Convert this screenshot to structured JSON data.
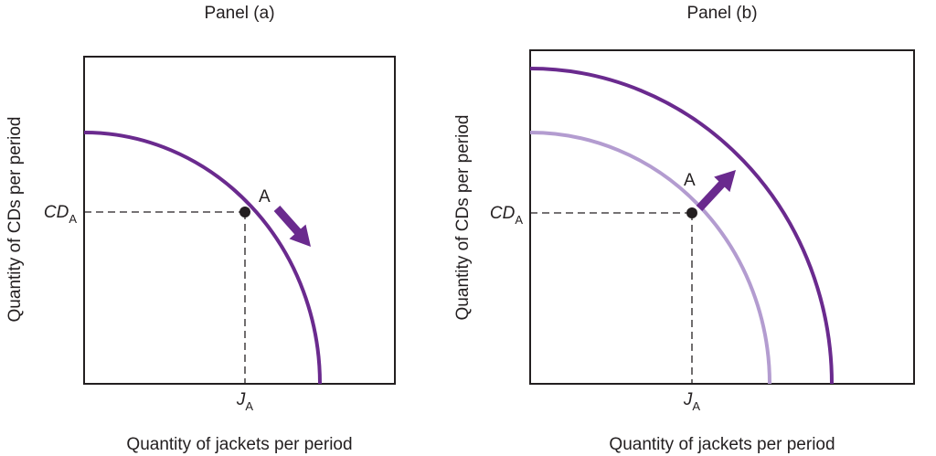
{
  "panels": [
    {
      "title": "Panel (a)",
      "y_axis_label": "Quantity of CDs per period",
      "x_axis_label": "Quantity of jackets per period",
      "point_label": "A",
      "y_marker": {
        "main": "CD",
        "sub": "A"
      },
      "x_marker": {
        "main": "J",
        "sub": "A"
      }
    },
    {
      "title": "Panel (b)",
      "y_axis_label": "Quantity of CDs per period",
      "x_axis_label": "Quantity of jackets per period",
      "point_label": "A",
      "y_marker": {
        "main": "CD",
        "sub": "A"
      },
      "x_marker": {
        "main": "J",
        "sub": "A"
      }
    }
  ]
}
